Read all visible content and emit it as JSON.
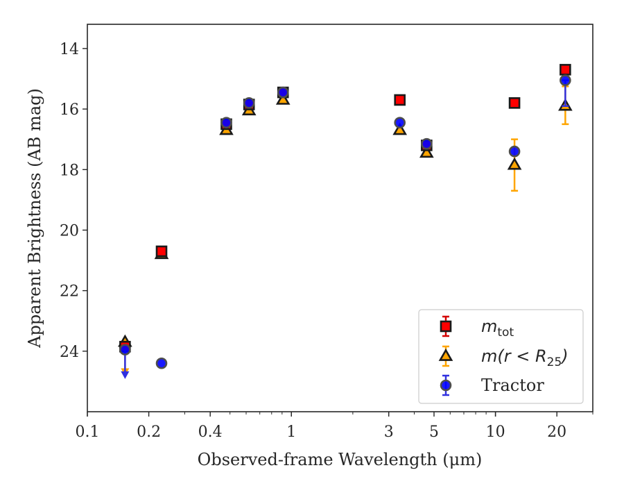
{
  "chart_data": {
    "type": "scatter",
    "title": "",
    "xlabel": "Observed-frame Wavelength (μm)",
    "ylabel": "Apparent Brightness (AB mag)",
    "x_scale": "log",
    "xlim": [
      0.1,
      30
    ],
    "ylim": [
      26.0,
      13.2
    ],
    "y_inverted": true,
    "x_ticks": [
      0.1,
      0.2,
      0.4,
      1,
      3,
      5,
      10,
      20
    ],
    "x_tick_labels": [
      "0.1",
      "0.2",
      "0.4",
      "1",
      "3",
      "5",
      "10",
      "20"
    ],
    "y_ticks": [
      14,
      16,
      18,
      20,
      22,
      24
    ],
    "y_tick_labels": [
      "14",
      "16",
      "18",
      "20",
      "22",
      "24"
    ],
    "grid": false,
    "legend_position": "bottom-right",
    "series": [
      {
        "name": "m_tot",
        "legend_main": "m",
        "legend_sub": "tot",
        "marker": "square",
        "color": "#ff0000",
        "edge_color": "#1a1a1a",
        "error_color": "#d40000",
        "points": [
          {
            "x": 0.153,
            "y": 23.85
          },
          {
            "x": 0.231,
            "y": 20.7
          },
          {
            "x": 0.48,
            "y": 16.5
          },
          {
            "x": 0.62,
            "y": 15.85
          },
          {
            "x": 0.91,
            "y": 15.45
          },
          {
            "x": 3.4,
            "y": 15.7
          },
          {
            "x": 4.6,
            "y": 17.2
          },
          {
            "x": 12.4,
            "y": 15.8
          },
          {
            "x": 22.0,
            "y": 14.7
          }
        ]
      },
      {
        "name": "m(r < R25)",
        "legend_main": "m(r < R",
        "legend_sub": "25",
        "legend_close": ")",
        "marker": "triangle",
        "color": "#ffa500",
        "edge_color": "#1a1a1a",
        "error_color": "#ffa500",
        "points": [
          {
            "x": 0.153,
            "y": 23.7,
            "upper_limit": true,
            "limit_to": 24.75
          },
          {
            "x": 0.231,
            "y": 20.8
          },
          {
            "x": 0.48,
            "y": 16.7
          },
          {
            "x": 0.62,
            "y": 16.05
          },
          {
            "x": 0.91,
            "y": 15.7
          },
          {
            "x": 3.4,
            "y": 16.7
          },
          {
            "x": 4.6,
            "y": 17.45
          },
          {
            "x": 12.4,
            "y": 17.85,
            "yerr_low": 17.0,
            "yerr_high": 18.7
          },
          {
            "x": 22.0,
            "y": 15.9,
            "yerr_low": 15.25,
            "yerr_high": 16.5
          }
        ]
      },
      {
        "name": "Tractor",
        "legend_main": "Tractor",
        "marker": "circle",
        "color": "#0000ff",
        "edge_color": "#4d4d4d",
        "error_color": "#3030e0",
        "points": [
          {
            "x": 0.153,
            "y": 23.95,
            "upper_limit": true,
            "limit_to": 24.85
          },
          {
            "x": 0.231,
            "y": 24.4
          },
          {
            "x": 0.48,
            "y": 16.45
          },
          {
            "x": 0.62,
            "y": 15.8
          },
          {
            "x": 0.91,
            "y": 15.45
          },
          {
            "x": 3.4,
            "y": 16.45
          },
          {
            "x": 4.6,
            "y": 17.15
          },
          {
            "x": 12.4,
            "y": 17.4
          },
          {
            "x": 22.0,
            "y": 15.05,
            "yerr_low": 15.05,
            "yerr_high": 15.9
          }
        ]
      }
    ]
  }
}
